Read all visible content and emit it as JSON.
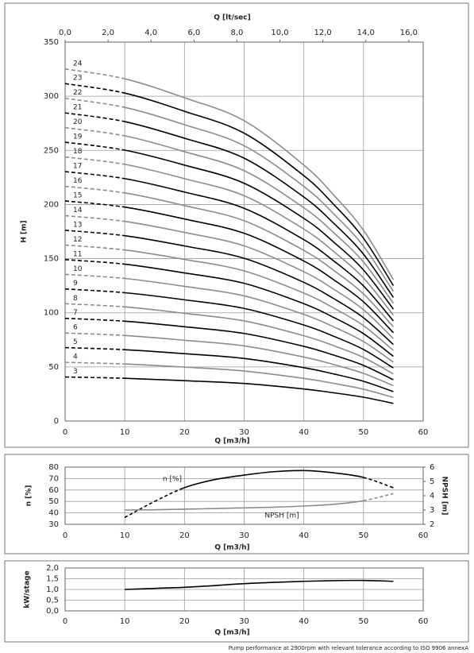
{
  "chart_data": [
    {
      "type": "line",
      "x_label": "Q [m3/h]",
      "x2_label": "Q [lt/sec]",
      "y_label": "H [m]",
      "x": [
        0,
        10,
        20,
        30,
        40,
        45,
        50,
        55
      ],
      "xlim": [
        0,
        60
      ],
      "xticks": [
        0,
        10,
        20,
        30,
        40,
        50,
        60
      ],
      "x2lim": [
        0,
        16.67
      ],
      "x2ticks": [
        {
          "value": 0,
          "label": "0,0"
        },
        {
          "value": 2,
          "label": "2,0"
        },
        {
          "value": 4,
          "label": "4,0"
        },
        {
          "value": 6,
          "label": "6,0"
        },
        {
          "value": 8,
          "label": "8,0"
        },
        {
          "value": 10,
          "label": "10,0"
        },
        {
          "value": 12,
          "label": "12,0"
        },
        {
          "value": 14,
          "label": "14,0"
        },
        {
          "value": 16,
          "label": "16,0"
        }
      ],
      "ylim": [
        0,
        350
      ],
      "yticks": [
        0,
        50,
        100,
        150,
        200,
        250,
        300,
        350
      ],
      "grid": true,
      "dash_ranges": [
        [
          0,
          10
        ]
      ],
      "series": [
        {
          "name": "3",
          "color": "#000000",
          "values": [
            40.7,
            39.5,
            37.3,
            34.7,
            29.6,
            26.1,
            22.0,
            16.3
          ]
        },
        {
          "name": "4",
          "color": "#8c8c8c",
          "values": [
            54.2,
            52.7,
            49.8,
            46.2,
            39.4,
            34.8,
            29.4,
            21.8
          ]
        },
        {
          "name": "5",
          "color": "#000000",
          "values": [
            67.8,
            65.9,
            62.2,
            57.8,
            49.3,
            43.5,
            36.7,
            27.2
          ]
        },
        {
          "name": "6",
          "color": "#8c8c8c",
          "values": [
            81.3,
            79.0,
            74.6,
            69.4,
            59.1,
            52.2,
            44.0,
            32.6
          ]
        },
        {
          "name": "7",
          "color": "#000000",
          "values": [
            94.9,
            92.2,
            87.1,
            80.9,
            69.0,
            60.9,
            51.4,
            38.1
          ]
        },
        {
          "name": "8",
          "color": "#8c8c8c",
          "values": [
            108.4,
            105.4,
            99.5,
            92.5,
            78.8,
            69.6,
            58.7,
            43.5
          ]
        },
        {
          "name": "9",
          "color": "#000000",
          "values": [
            122.0,
            118.5,
            112.0,
            104.0,
            88.7,
            78.3,
            66.1,
            49.0
          ]
        },
        {
          "name": "10",
          "color": "#8c8c8c",
          "values": [
            135.5,
            131.7,
            124.4,
            115.6,
            98.5,
            87.0,
            73.4,
            54.4
          ]
        },
        {
          "name": "11",
          "color": "#000000",
          "values": [
            149.1,
            144.9,
            136.8,
            127.2,
            108.4,
            95.7,
            80.7,
            59.8
          ]
        },
        {
          "name": "12",
          "color": "#8c8c8c",
          "values": [
            162.6,
            158.0,
            149.3,
            138.7,
            118.2,
            104.4,
            88.1,
            65.3
          ]
        },
        {
          "name": "13",
          "color": "#000000",
          "values": [
            176.2,
            171.2,
            161.7,
            150.3,
            128.1,
            113.1,
            95.4,
            70.7
          ]
        },
        {
          "name": "14",
          "color": "#8c8c8c",
          "values": [
            189.7,
            184.4,
            174.2,
            161.8,
            137.9,
            121.8,
            102.8,
            76.2
          ]
        },
        {
          "name": "15",
          "color": "#000000",
          "values": [
            203.3,
            197.6,
            186.6,
            173.4,
            147.8,
            130.5,
            110.1,
            81.6
          ]
        },
        {
          "name": "16",
          "color": "#8c8c8c",
          "values": [
            216.8,
            210.7,
            199.0,
            185.0,
            157.6,
            139.2,
            117.4,
            87.0
          ]
        },
        {
          "name": "17",
          "color": "#000000",
          "values": [
            230.4,
            223.9,
            211.5,
            196.5,
            167.5,
            147.9,
            124.8,
            92.5
          ]
        },
        {
          "name": "18",
          "color": "#8c8c8c",
          "values": [
            243.9,
            237.1,
            223.9,
            208.1,
            177.3,
            156.6,
            132.1,
            97.9
          ]
        },
        {
          "name": "19",
          "color": "#000000",
          "values": [
            257.5,
            250.2,
            236.4,
            219.6,
            187.2,
            165.3,
            139.5,
            103.4
          ]
        },
        {
          "name": "20",
          "color": "#8c8c8c",
          "values": [
            271.0,
            263.4,
            248.8,
            231.2,
            197.0,
            174.0,
            146.8,
            108.8
          ]
        },
        {
          "name": "21",
          "color": "#000000",
          "values": [
            284.6,
            276.6,
            261.2,
            242.8,
            206.9,
            182.7,
            154.1,
            114.2
          ]
        },
        {
          "name": "22",
          "color": "#8c8c8c",
          "values": [
            298.1,
            289.7,
            273.7,
            254.3,
            216.7,
            191.4,
            161.5,
            119.7
          ]
        },
        {
          "name": "23",
          "color": "#000000",
          "values": [
            311.7,
            302.9,
            286.1,
            265.9,
            226.6,
            200.1,
            168.8,
            125.1
          ]
        },
        {
          "name": "24",
          "color": "#8c8c8c",
          "values": [
            325.2,
            316.1,
            298.6,
            277.4,
            236.4,
            208.8,
            176.2,
            130.6
          ]
        }
      ]
    },
    {
      "type": "line",
      "x_label": "Q [m3/h]",
      "y_label": "n [%]",
      "y2_label": "NPSH [m]",
      "x": [
        10,
        15,
        20,
        25,
        30,
        35,
        40,
        45,
        50,
        55
      ],
      "xlim": [
        0,
        60
      ],
      "xticks": [
        0,
        10,
        20,
        30,
        40,
        50,
        60
      ],
      "ylim": [
        30,
        80
      ],
      "yticks": [
        30,
        40,
        50,
        60,
        70,
        80
      ],
      "y2lim": [
        2,
        6
      ],
      "y2ticks": [
        2,
        3,
        4,
        5,
        6
      ],
      "grid": true,
      "series": [
        {
          "name": "n [%]",
          "color": "#000000",
          "values": [
            36,
            50,
            62,
            69,
            73,
            76,
            77,
            75,
            71,
            62
          ],
          "dash_ranges": [
            [
              10,
              20
            ],
            [
              50,
              55
            ]
          ]
        },
        {
          "name": "NPSH [m]",
          "color": "#8c8c8c",
          "axis": "y2",
          "values": [
            3.0,
            3.02,
            3.06,
            3.1,
            3.15,
            3.2,
            3.28,
            3.4,
            3.65,
            4.15
          ],
          "dash_ranges": [
            [
              50,
              55
            ]
          ]
        }
      ]
    },
    {
      "type": "line",
      "x_label": "Q [m3/h]",
      "y_label": "kW/stage",
      "x": [
        10,
        15,
        20,
        25,
        30,
        35,
        40,
        45,
        50,
        55
      ],
      "xlim": [
        0,
        60
      ],
      "xticks": [
        0,
        10,
        20,
        30,
        40,
        50,
        60
      ],
      "ylim": [
        0,
        2
      ],
      "yticks": [
        {
          "value": 0,
          "label": "0,0"
        },
        {
          "value": 0.5,
          "label": "0,5"
        },
        {
          "value": 1,
          "label": "1,0"
        },
        {
          "value": 1.5,
          "label": "1,5"
        },
        {
          "value": 2,
          "label": "2,0"
        }
      ],
      "grid": true,
      "series": [
        {
          "name": "kW/stage",
          "color": "#000000",
          "values": [
            1.0,
            1.05,
            1.1,
            1.18,
            1.27,
            1.33,
            1.38,
            1.41,
            1.42,
            1.38
          ]
        }
      ]
    }
  ],
  "footer": "Pump performance at 2900rpm with relevant tolerance according to ISO 9906 annexA"
}
